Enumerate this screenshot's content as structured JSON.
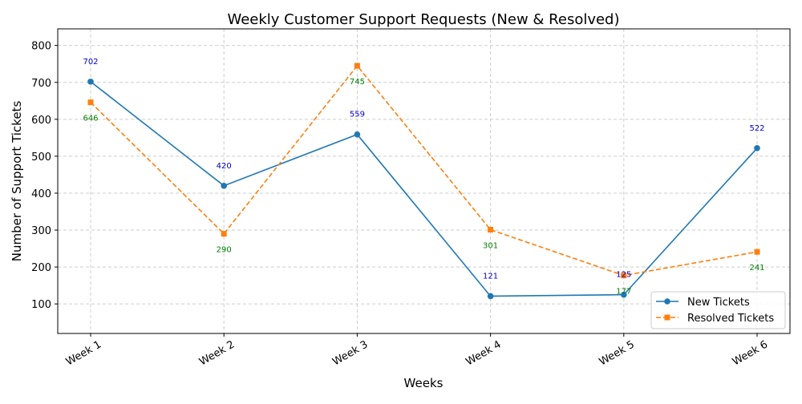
{
  "chart_data": {
    "type": "line",
    "title": "Weekly Customer Support Requests (New & Resolved)",
    "xlabel": "Weeks",
    "ylabel": "Number of Support Tickets",
    "categories": [
      "Week 1",
      "Week 2",
      "Week 3",
      "Week 4",
      "Week 5",
      "Week 6"
    ],
    "ylim": [
      20,
      845
    ],
    "yticks": [
      100,
      200,
      300,
      400,
      500,
      600,
      700,
      800
    ],
    "grid": true,
    "legend_position": "bottom-right",
    "series": [
      {
        "name": "New Tickets",
        "values": [
          702,
          420,
          559,
          121,
          125,
          522
        ],
        "color": "#1f77b4",
        "label_color": "#0000cc",
        "label_position": "above",
        "marker": "circle",
        "line_style": "solid"
      },
      {
        "name": "Resolved Tickets",
        "values": [
          646,
          290,
          745,
          301,
          177,
          241
        ],
        "color": "#ff7f0e",
        "label_color": "#008000",
        "label_position": "below",
        "marker": "square",
        "line_style": "dashed"
      }
    ]
  }
}
